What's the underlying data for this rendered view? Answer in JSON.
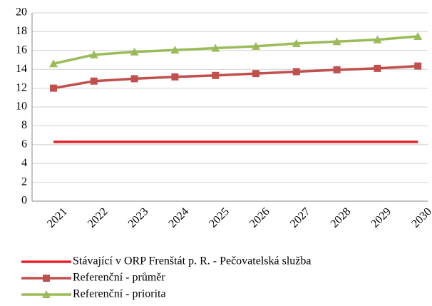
{
  "chart_data": {
    "type": "line",
    "categories": [
      "2021",
      "2022",
      "2023",
      "2024",
      "2025",
      "2026",
      "2027",
      "2028",
      "2029",
      "2030"
    ],
    "series": [
      {
        "name": "Stávající v ORP Frenštát p. R. - Pečovatelská služba",
        "color": "#e8202a",
        "marker": "none",
        "values": [
          6.3,
          6.3,
          6.3,
          6.3,
          6.3,
          6.3,
          6.3,
          6.3,
          6.3,
          6.3
        ]
      },
      {
        "name": "Referenční - průměr",
        "color": "#c0504d",
        "marker": "square",
        "values": [
          12.0,
          12.75,
          13.0,
          13.2,
          13.35,
          13.55,
          13.75,
          13.95,
          14.1,
          14.35
        ]
      },
      {
        "name": "Referenční - priorita",
        "color": "#9bbb59",
        "marker": "triangle",
        "values": [
          14.6,
          15.55,
          15.85,
          16.05,
          16.25,
          16.45,
          16.75,
          16.95,
          17.15,
          17.5
        ]
      }
    ],
    "ylim": [
      0,
      20
    ],
    "yticks": [
      0,
      2,
      4,
      6,
      8,
      10,
      12,
      14,
      16,
      18,
      20
    ],
    "grid": true,
    "legend": "bottom"
  }
}
